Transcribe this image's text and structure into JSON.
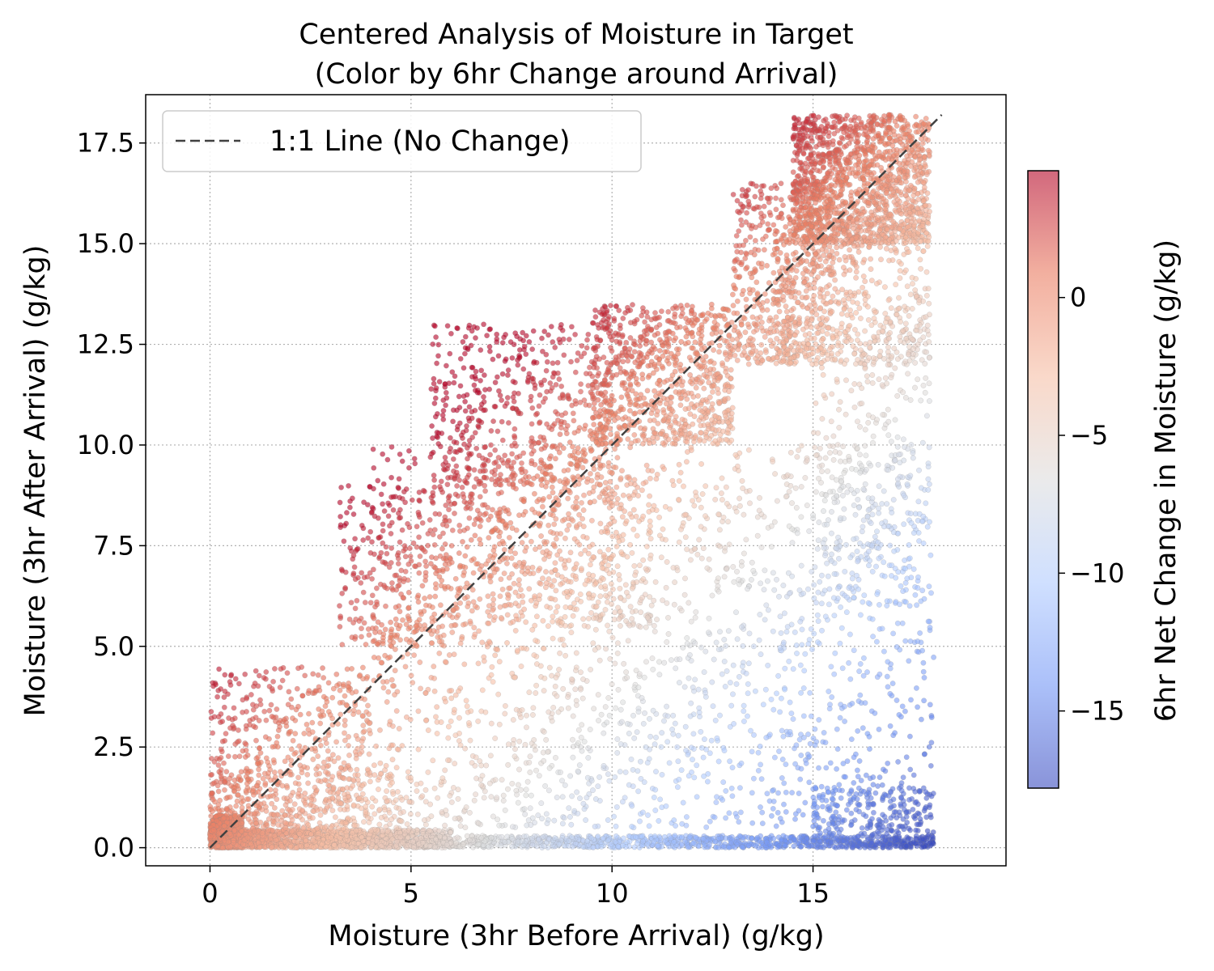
{
  "chart_data": {
    "type": "scatter",
    "title_lines": [
      "Centered Analysis of Moisture in Target",
      "(Color by 6hr Change around Arrival)"
    ],
    "xlabel": "Moisture (3hr Before Arrival) (g/kg)",
    "ylabel": "Moisture (3hr After Arrival) (g/kg)",
    "xlim": [
      -1.6,
      19.8
    ],
    "ylim": [
      -0.45,
      18.7
    ],
    "x_ticks": [
      0,
      5,
      10,
      15
    ],
    "x_tick_labels": [
      "0",
      "5",
      "10",
      "15"
    ],
    "y_ticks": [
      0,
      2.5,
      5,
      7.5,
      10,
      12.5,
      15,
      17.5
    ],
    "y_tick_labels": [
      "0.0",
      "2.5",
      "5.0",
      "7.5",
      "10.0",
      "12.5",
      "15.0",
      "17.5"
    ],
    "grid": true,
    "legend": {
      "position": "upper-left",
      "entries": [
        "1:1 Line (No Change)"
      ]
    },
    "reference_line": {
      "name": "1:1 Line (No Change)",
      "x": [
        0,
        18.2
      ],
      "y": [
        0,
        18.2
      ],
      "style": "dashed",
      "color": "#404040"
    },
    "colorbar": {
      "label": "6hr Net Change in Moisture (g/kg)",
      "range": [
        -17.8,
        4.6
      ],
      "ticks": [
        0,
        -5,
        -10,
        -15
      ],
      "tick_labels": [
        "0",
        "−5",
        "−10",
        "−15"
      ],
      "colormap": "coolwarm",
      "stops": [
        "#3b4cc0",
        "#7396f5",
        "#b0cbff",
        "#dddddd",
        "#f6bfa6",
        "#ea7b60",
        "#b40426"
      ]
    },
    "series": [
      {
        "color_by": "y - x",
        "clusters": [
          {
            "x": [
              0,
              0.8
            ],
            "y": [
              0,
              0.8
            ],
            "n": 600
          },
          {
            "x": [
              0,
              6
            ],
            "y": [
              0,
              0.45
            ],
            "n": 1100
          },
          {
            "x": [
              5,
              18
            ],
            "y": [
              0,
              0.3
            ],
            "n": 900
          },
          {
            "x": [
              0,
              4
            ],
            "y": [
              0,
              4.5
            ],
            "n": 600
          },
          {
            "x": [
              0,
              5
            ],
            "y": [
              0,
              2
            ],
            "n": 400
          },
          {
            "x": [
              3.2,
              6
            ],
            "y": [
              5,
              9
            ],
            "n": 260
          },
          {
            "x": [
              5.5,
              10
            ],
            "y": [
              9,
              13
            ],
            "n": 520
          },
          {
            "x": [
              6,
              11
            ],
            "y": [
              5.5,
              9.5
            ],
            "n": 500
          },
          {
            "x": [
              9.5,
              13
            ],
            "y": [
              10,
              13.5
            ],
            "n": 800
          },
          {
            "x": [
              13,
              15.5
            ],
            "y": [
              12,
              16.5
            ],
            "n": 500
          },
          {
            "x": [
              14.5,
              17.9
            ],
            "y": [
              15,
              18.2
            ],
            "n": 1400
          },
          {
            "x": [
              14,
              17.9
            ],
            "y": [
              12,
              15.5
            ],
            "n": 500
          },
          {
            "x": [
              4,
              18
            ],
            "y": [
              0.5,
              10
            ],
            "n": 1800
          },
          {
            "x": [
              15,
              17.9
            ],
            "y": [
              6,
              13
            ],
            "n": 300
          },
          {
            "x": [
              15,
              18
            ],
            "y": [
              0,
              1.5
            ],
            "n": 250
          }
        ]
      }
    ]
  }
}
